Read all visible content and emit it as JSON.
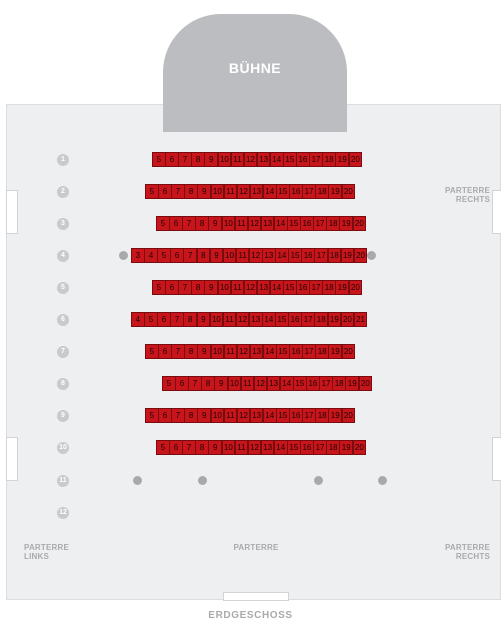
{
  "stage": {
    "label": "BÜHNE"
  },
  "floor_label": "ERDGESCHOSS",
  "areas": {
    "right_top": [
      "PARTERRE",
      "RECHTS"
    ],
    "left_bottom": [
      "PARTERRE",
      "LINKS"
    ],
    "center_bottom": [
      "PARTERRE"
    ],
    "right_bottom": [
      "PARTERRE",
      "RECHTS"
    ]
  },
  "rows": [
    {
      "number": "1",
      "seats": [
        "5",
        "6",
        "7",
        "8",
        "9",
        "10",
        "11",
        "12",
        "13",
        "14",
        "15",
        "16",
        "17",
        "18",
        "19",
        "20"
      ]
    },
    {
      "number": "2",
      "seats": [
        "5",
        "6",
        "7",
        "8",
        "9",
        "10",
        "11",
        "12",
        "13",
        "14",
        "15",
        "16",
        "17",
        "18",
        "19",
        "20"
      ]
    },
    {
      "number": "3",
      "seats": [
        "5",
        "6",
        "7",
        "8",
        "9",
        "10",
        "11",
        "12",
        "13",
        "14",
        "15",
        "16",
        "17",
        "18",
        "19",
        "20"
      ]
    },
    {
      "number": "4",
      "seats": [
        "3",
        "4",
        "5",
        "6",
        "7",
        "8",
        "9",
        "10",
        "11",
        "12",
        "13",
        "14",
        "15",
        "16",
        "17",
        "18",
        "19",
        "20"
      ]
    },
    {
      "number": "5",
      "seats": [
        "5",
        "6",
        "7",
        "8",
        "9",
        "10",
        "11",
        "12",
        "13",
        "14",
        "15",
        "16",
        "17",
        "18",
        "19",
        "20"
      ]
    },
    {
      "number": "6",
      "seats": [
        "4",
        "5",
        "6",
        "7",
        "8",
        "9",
        "10",
        "11",
        "12",
        "13",
        "14",
        "15",
        "16",
        "17",
        "18",
        "19",
        "20",
        "21"
      ]
    },
    {
      "number": "7",
      "seats": [
        "5",
        "6",
        "7",
        "8",
        "9",
        "10",
        "11",
        "12",
        "13",
        "14",
        "15",
        "16",
        "17",
        "18",
        "19",
        "20"
      ]
    },
    {
      "number": "8",
      "seats": [
        "5",
        "6",
        "7",
        "8",
        "9",
        "10",
        "11",
        "12",
        "13",
        "14",
        "15",
        "16",
        "17",
        "18",
        "19",
        "20"
      ]
    },
    {
      "number": "9",
      "seats": [
        "5",
        "6",
        "7",
        "8",
        "9",
        "10",
        "11",
        "12",
        "13",
        "14",
        "15",
        "16",
        "17",
        "18",
        "19",
        "20"
      ]
    },
    {
      "number": "10",
      "seats": [
        "5",
        "6",
        "7",
        "8",
        "9",
        "10",
        "11",
        "12",
        "13",
        "14",
        "15",
        "16",
        "17",
        "18",
        "19",
        "20"
      ]
    },
    {
      "number": "11",
      "seats": []
    },
    {
      "number": "12",
      "seats": []
    }
  ],
  "colors": {
    "seat": "#c8151b",
    "hall": "#eeeff0",
    "stage": "#bcbdc1"
  }
}
